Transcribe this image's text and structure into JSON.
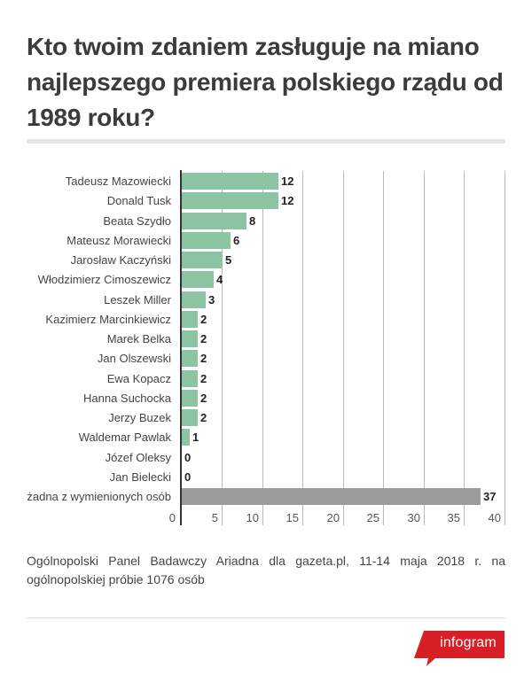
{
  "title_lines": [
    "Kto twoim zdaniem zasługuje na miano",
    "najlepszego premiera polskiego rządu od",
    "1989 roku?"
  ],
  "footer": {
    "note": "Ogólnopolski Panel Badawczy Ariadna dla gazeta.pl, 11-14 maja 2018 r. na ogólnopolskiej próbie 1076 osób"
  },
  "logo": {
    "label": "infogram",
    "color": "#d81f26"
  },
  "colors": {
    "bar_primary": "#8cc4a4",
    "bar_other": "#9b9b9b",
    "axis": "#333333",
    "grid": "#b9b9b9"
  },
  "chart_data": {
    "type": "bar",
    "orientation": "horizontal",
    "title": "Kto twoim zdaniem zasługuje na miano najlepszego premiera polskiego rządu od 1989 roku?",
    "xlabel": "",
    "ylabel": "",
    "categories": [
      "Tadeusz Mazowiecki",
      "Donald Tusk",
      "Beata Szydło",
      "Mateusz Morawiecki",
      "Jarosław Kaczyński",
      "Włodzimierz Cimoszewicz",
      "Leszek Miller",
      "Kazimierz Marcinkiewicz",
      "Marek Belka",
      "Jan Olszewski",
      "Ewa Kopacz",
      "Hanna Suchocka",
      "Jerzy Buzek",
      "Waldemar Pawlak",
      "Józef Oleksy",
      "Jan Bielecki",
      "żadna z wymienionych osób"
    ],
    "values": [
      12,
      12,
      8,
      6,
      5,
      4,
      3,
      2,
      2,
      2,
      2,
      2,
      2,
      1,
      0,
      0,
      37
    ],
    "value_labels": [
      "12",
      "12",
      "8",
      "6",
      "5",
      "4",
      "3",
      "2",
      "2",
      "2",
      "2",
      "2",
      "2",
      "1",
      "0",
      "0",
      "37"
    ],
    "bar_colors": [
      "#8cc4a4",
      "#8cc4a4",
      "#8cc4a4",
      "#8cc4a4",
      "#8cc4a4",
      "#8cc4a4",
      "#8cc4a4",
      "#8cc4a4",
      "#8cc4a4",
      "#8cc4a4",
      "#8cc4a4",
      "#8cc4a4",
      "#8cc4a4",
      "#8cc4a4",
      "#8cc4a4",
      "#8cc4a4",
      "#9b9b9b"
    ],
    "xlim": [
      0,
      40
    ],
    "xticks": [
      "0",
      "5",
      "10",
      "15",
      "20",
      "25",
      "30",
      "35",
      "40"
    ],
    "grid": true,
    "legend": null
  }
}
